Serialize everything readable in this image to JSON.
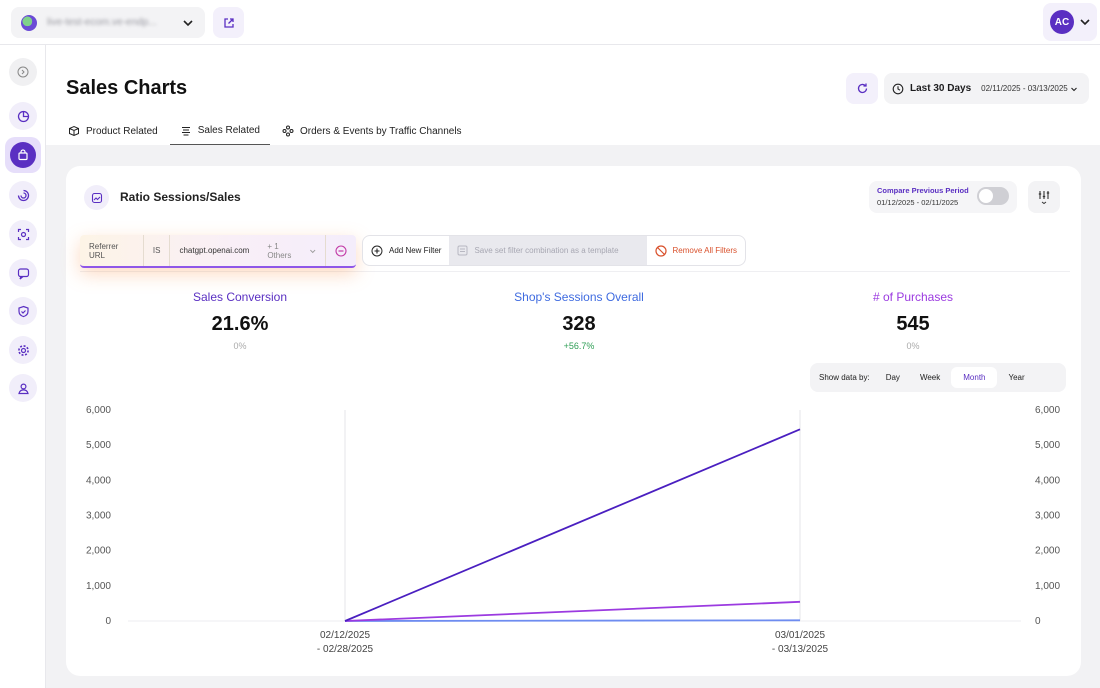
{
  "topbar": {
    "store_name": "live-test-ecom.ve-endp...",
    "user_initials": "AC"
  },
  "sidebar": {
    "items": [
      {
        "icon": "collapse-icon"
      },
      {
        "icon": "pie-chart-icon"
      },
      {
        "icon": "shopping-bag-icon",
        "active": true
      },
      {
        "icon": "spiral-icon"
      },
      {
        "icon": "scan-icon"
      },
      {
        "icon": "chat-icon"
      },
      {
        "icon": "shield-check-icon"
      },
      {
        "icon": "gear-icon"
      },
      {
        "icon": "user-icon"
      }
    ]
  },
  "header": {
    "title": "Sales Charts",
    "period_label": "Last 30 Days",
    "date_range": "02/11/2025 - 03/13/2025",
    "tabs": [
      {
        "label": "Product Related",
        "active": false
      },
      {
        "label": "Sales Related",
        "active": true
      },
      {
        "label": "Orders & Events by Traffic Channels",
        "active": false
      }
    ]
  },
  "card": {
    "title": "Ratio Sessions/Sales",
    "compare": {
      "label": "Compare Previous Period",
      "range": "01/12/2025 - 02/11/2025",
      "enabled": false
    },
    "filter": {
      "field": "Referrer URL",
      "operator": "IS",
      "value": "chatgpt.openai.com",
      "others": "+ 1 Others"
    },
    "filter_actions": {
      "add": "Add New Filter",
      "save": "Save set filter combination as a template",
      "remove": "Remove All Filters"
    },
    "metrics": [
      {
        "label": "Sales Conversion",
        "value": "21.6%",
        "change": "0%",
        "color": "#5a2fc2",
        "change_color": "#aaaaaa"
      },
      {
        "label": "Shop's Sessions Overall",
        "value": "328",
        "change": "+56.7%",
        "color": "#3f6be0",
        "change_color": "#2e9e55"
      },
      {
        "label": "# of Purchases",
        "value": "545",
        "change": "0%",
        "color": "#9b3ae0",
        "change_color": "#aaaaaa"
      }
    ],
    "show_by": {
      "label": "Show data by:",
      "options": [
        "Day",
        "Week",
        "Month",
        "Year"
      ],
      "selected": "Month"
    }
  },
  "chart_data": {
    "type": "line",
    "x": [
      [
        "02/12/2025",
        "- 02/28/2025"
      ],
      [
        "03/01/2025",
        "- 03/13/2025"
      ]
    ],
    "ylim": [
      0,
      6000
    ],
    "yticks": [
      "6,000",
      "5,000",
      "4,000",
      "3,000",
      "2,000",
      "1,000",
      "0"
    ],
    "series": [
      {
        "values": [
          0,
          5450
        ],
        "color": "#4a1fc0"
      },
      {
        "values": [
          0,
          545
        ],
        "color": "#9b3ae0"
      },
      {
        "values": [
          0,
          20
        ],
        "color": "#6e8cf0"
      }
    ],
    "grid": false
  }
}
